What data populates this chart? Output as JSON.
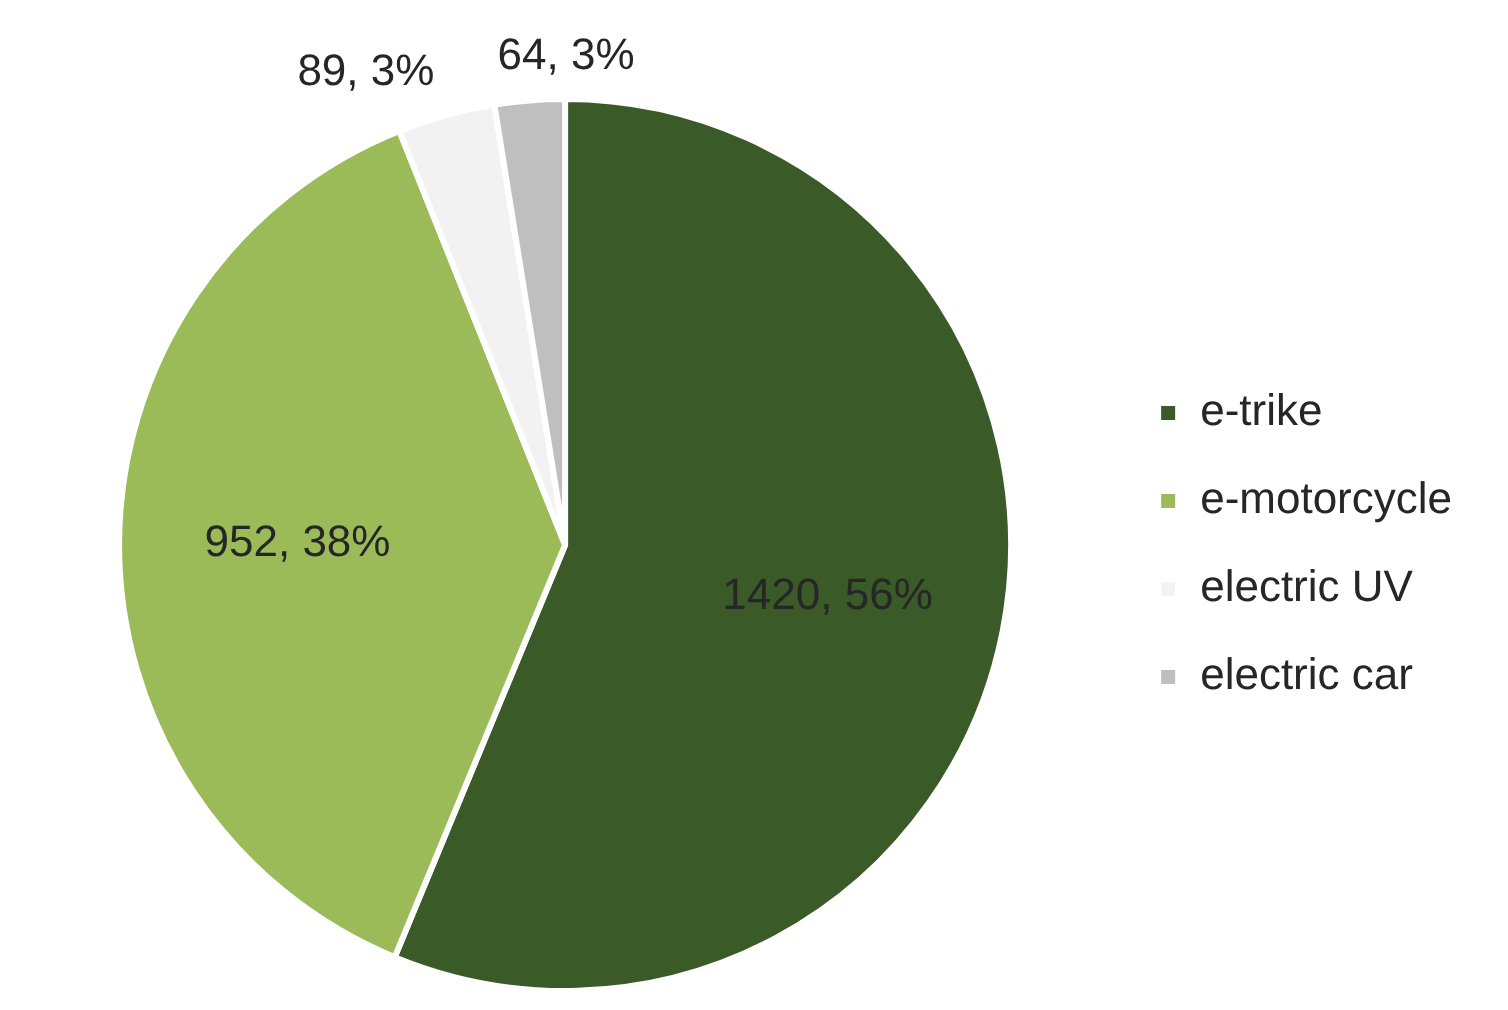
{
  "chart_data": {
    "type": "pie",
    "categories": [
      "e-trike",
      "e-motorcycle",
      "electric UV",
      "electric car"
    ],
    "values": [
      1420,
      952,
      89,
      64
    ],
    "colors": [
      "#3a5a27",
      "#9bbb59",
      "#f2f2f2",
      "#bfbfbf"
    ],
    "value_labels": [
      "1420, 56%",
      "952, 38%",
      "89, 3%",
      "64, 3%"
    ],
    "legend": "right"
  }
}
